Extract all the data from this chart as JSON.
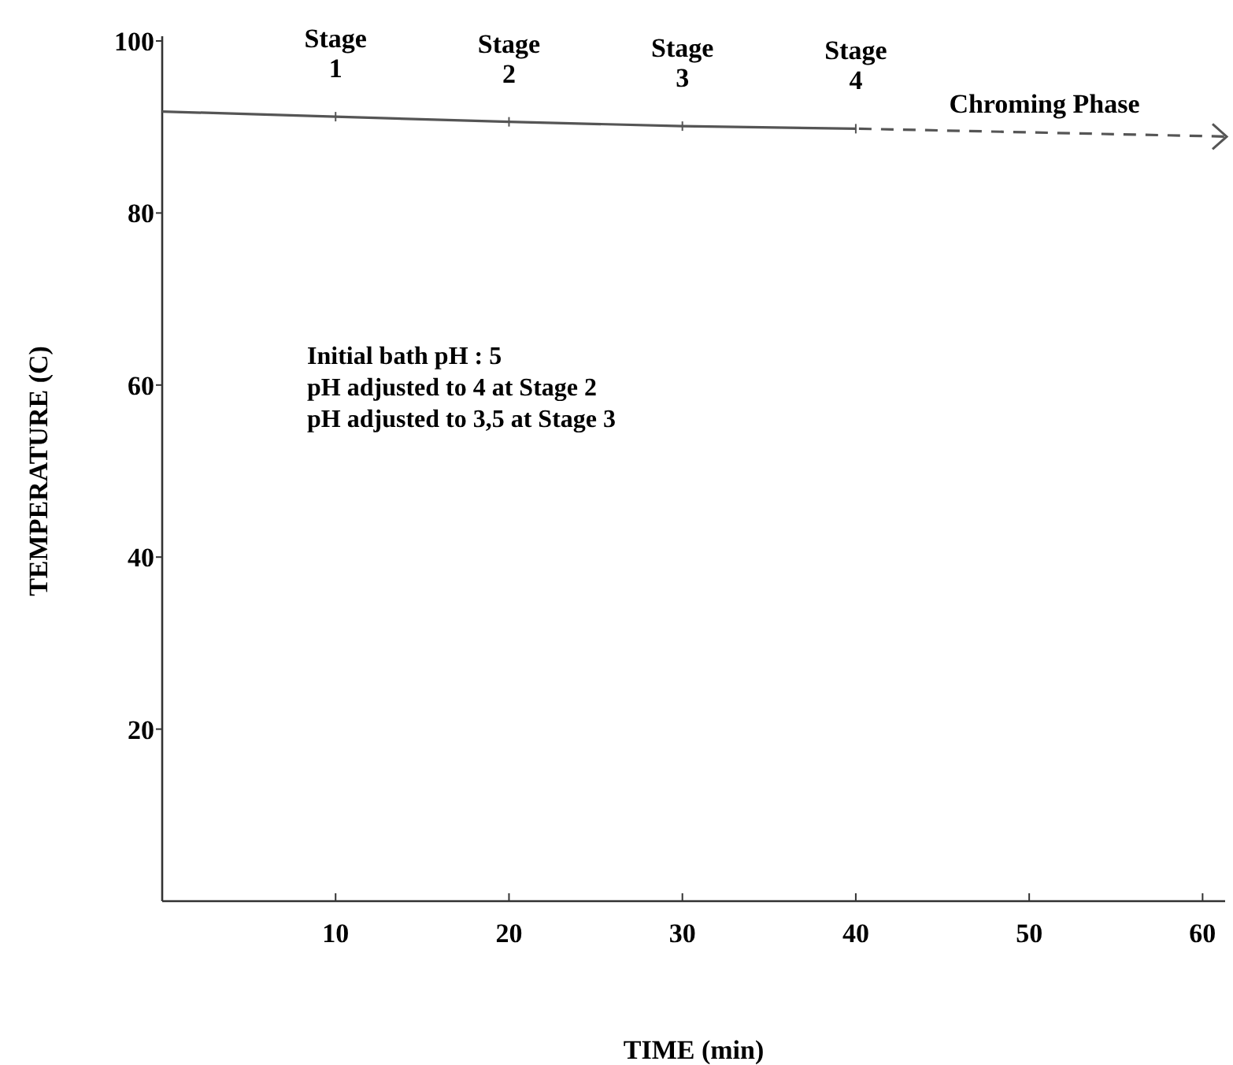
{
  "chart_data": {
    "type": "line",
    "xlabel": "TIME (min)",
    "ylabel": "TEMPERATURE (C)",
    "xlim": [
      0,
      61.3
    ],
    "ylim": [
      0,
      100
    ],
    "xticks": [
      10,
      20,
      30,
      40,
      50,
      60
    ],
    "yticks": [
      20,
      40,
      60,
      80,
      100
    ],
    "grid": false,
    "marker": "none",
    "series": [
      {
        "color": "#555555",
        "x": [
          0,
          10,
          20,
          30,
          40
        ],
        "values": [
          91.8,
          91.2,
          90.6,
          90.1,
          89.8
        ],
        "line_style": "solid"
      }
    ],
    "annotations": [
      {
        "text": "Stage\n1",
        "x": 10,
        "y": 91.2
      },
      {
        "text": "Stage\n2",
        "x": 20,
        "y": 90.6
      },
      {
        "text": "Stage\n3",
        "x": 30,
        "y": 90.1
      },
      {
        "text": "Stage\n4",
        "x": 40,
        "y": 89.8
      },
      "Chroming Phase",
      "Initial bath pH : 5\npH adjusted to 4 at Stage 2\npH adjusted to 3,5 at Stage 3"
    ]
  }
}
